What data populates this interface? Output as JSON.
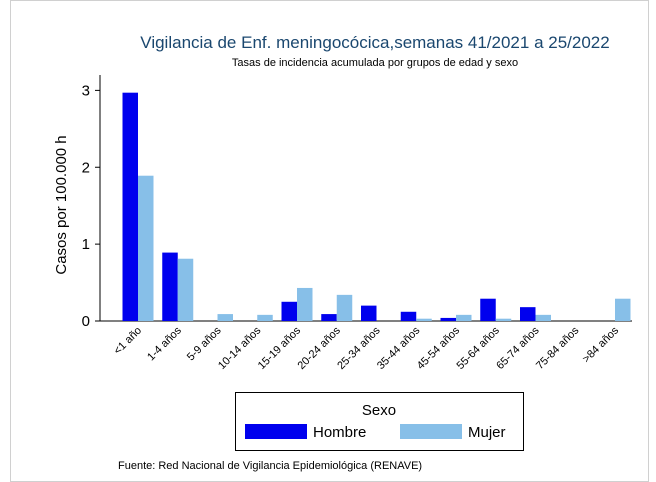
{
  "chart_data": {
    "type": "bar",
    "title": "Vigilancia de Enf. meningocócica,semanas 41/2021 a 25/2022",
    "subtitle": "Tasas de incidencia acumulada por grupos de edad y sexo",
    "y_label": "Casos por 100.000 h",
    "categories": [
      "<1 año",
      "1-4 años",
      "5-9 años",
      "10-14 años",
      "15-19 años",
      "20-24 años",
      "25-34 años",
      "35-44 años",
      "45-54 años",
      "55-64 años",
      "65-74 años",
      "75-84 años",
      ">84 años"
    ],
    "series": [
      {
        "name": "Hombre",
        "color": "#0000ee",
        "values": [
          2.97,
          0.89,
          0,
          0,
          0.25,
          0.09,
          0.2,
          0.12,
          0.04,
          0.29,
          0.18,
          0,
          0
        ]
      },
      {
        "name": "Mujer",
        "color": "#87bfe8",
        "values": [
          1.89,
          0.81,
          0.09,
          0.08,
          0.43,
          0.34,
          0,
          0.03,
          0.08,
          0.03,
          0.08,
          0,
          0.29
        ]
      }
    ],
    "ylim": [
      0,
      3.2
    ],
    "yticks": [
      0,
      1,
      2,
      3
    ],
    "legend_title": "Sexo",
    "source": "Fuente: Red Nacional de Vigilancia Epidemiológica (RENAVE)"
  }
}
